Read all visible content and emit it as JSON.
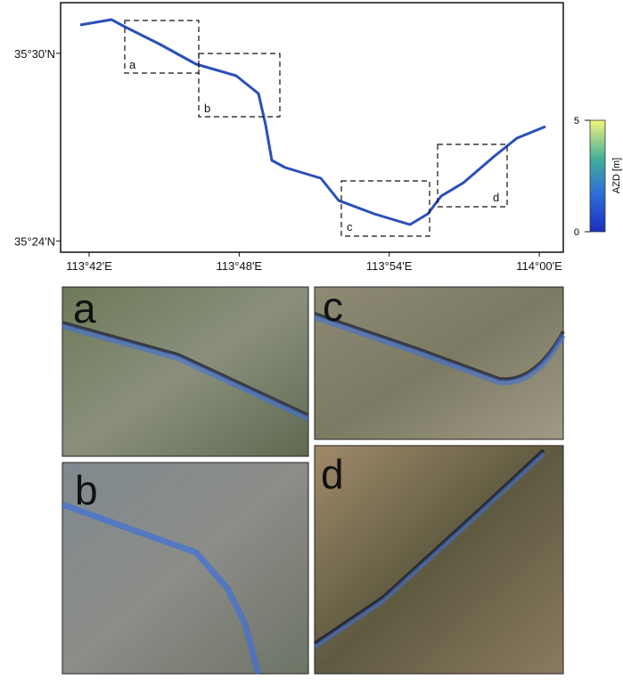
{
  "map": {
    "xlim": [
      113.681,
      114.016
    ],
    "ylim": [
      35.394,
      35.527
    ],
    "xticks": [
      {
        "value": 113.7,
        "label": "113°42'E"
      },
      {
        "value": 113.8,
        "label": "113°48'E"
      },
      {
        "value": 113.9,
        "label": "113°54'E"
      },
      {
        "value": 114.0,
        "label": "114°00'E"
      }
    ],
    "yticks": [
      {
        "value": 35.5,
        "label": "35°30'N"
      },
      {
        "value": 35.4,
        "label": "35°24'N"
      }
    ],
    "boxes": [
      "a",
      "b",
      "c",
      "d"
    ],
    "colorbar": {
      "label": "AZD [m]",
      "lim": [
        0,
        5
      ],
      "ticks": [
        0,
        5
      ]
    }
  },
  "panels": [
    "a",
    "b",
    "c",
    "d"
  ]
}
